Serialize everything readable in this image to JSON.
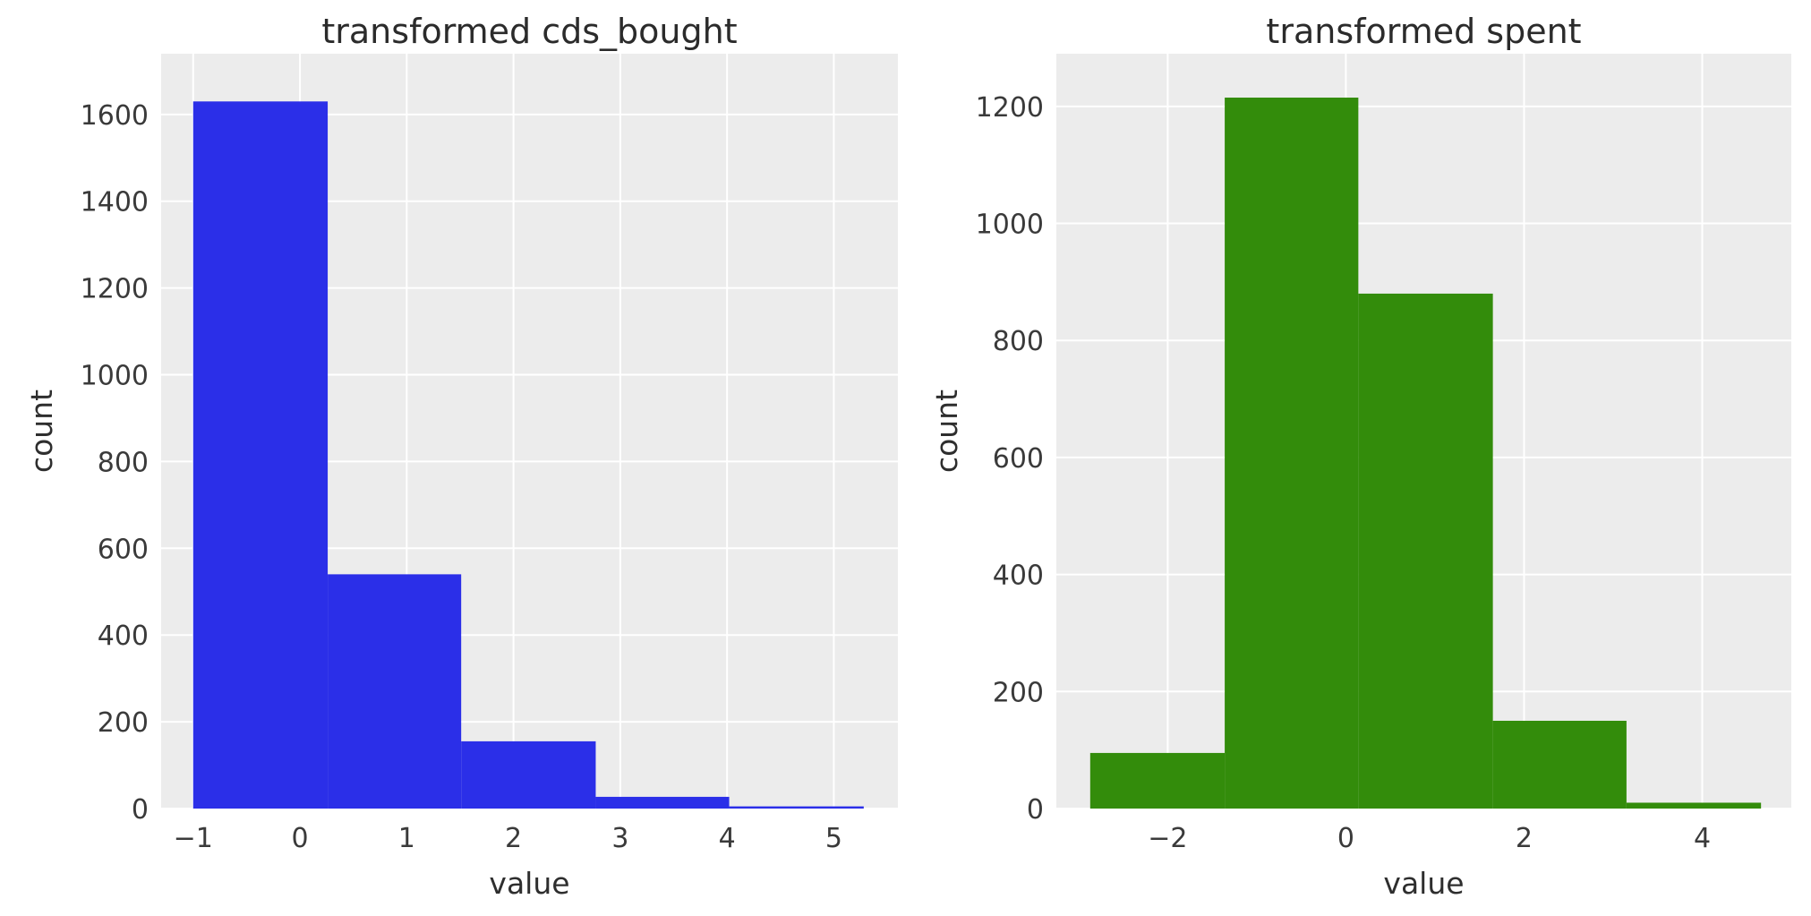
{
  "figure": {
    "background": "#ffffff",
    "plot_background": "#ececec",
    "grid_color": "#ffffff",
    "text_color": "#2e2e2e"
  },
  "chart_data": [
    {
      "type": "bar",
      "subtype": "histogram",
      "title": "transformed cds_bought",
      "xlabel": "value",
      "ylabel": "count",
      "bar_color": "#2b2fe8",
      "legend": "none",
      "grid": true,
      "xlim": [
        -1.3,
        5.6
      ],
      "ylim": [
        0,
        1740
      ],
      "xticks": [
        -1,
        0,
        1,
        2,
        3,
        4,
        5
      ],
      "xtick_labels": [
        "−1",
        "0",
        "1",
        "2",
        "3",
        "4",
        "5"
      ],
      "yticks": [
        0,
        200,
        400,
        600,
        800,
        1000,
        1200,
        1400,
        1600
      ],
      "ytick_labels": [
        "0",
        "200",
        "400",
        "600",
        "800",
        "1000",
        "1200",
        "1400",
        "1600"
      ],
      "bin_edges": [
        -1.0,
        0.26,
        1.51,
        2.77,
        4.02,
        5.28
      ],
      "counts": [
        1630,
        540,
        155,
        27,
        5
      ]
    },
    {
      "type": "bar",
      "subtype": "histogram",
      "title": "transformed spent",
      "xlabel": "value",
      "ylabel": "count",
      "bar_color": "#338c0b",
      "legend": "none",
      "grid": true,
      "xlim": [
        -3.25,
        5.0
      ],
      "ylim": [
        0,
        1290
      ],
      "xticks": [
        -2,
        0,
        2,
        4
      ],
      "xtick_labels": [
        "−2",
        "0",
        "2",
        "4"
      ],
      "yticks": [
        0,
        200,
        400,
        600,
        800,
        1000,
        1200
      ],
      "ytick_labels": [
        "0",
        "200",
        "400",
        "600",
        "800",
        "1000",
        "1200"
      ],
      "bin_edges": [
        -2.87,
        -1.36,
        0.14,
        1.65,
        3.15,
        4.66
      ],
      "counts": [
        95,
        1215,
        880,
        150,
        10
      ]
    }
  ]
}
